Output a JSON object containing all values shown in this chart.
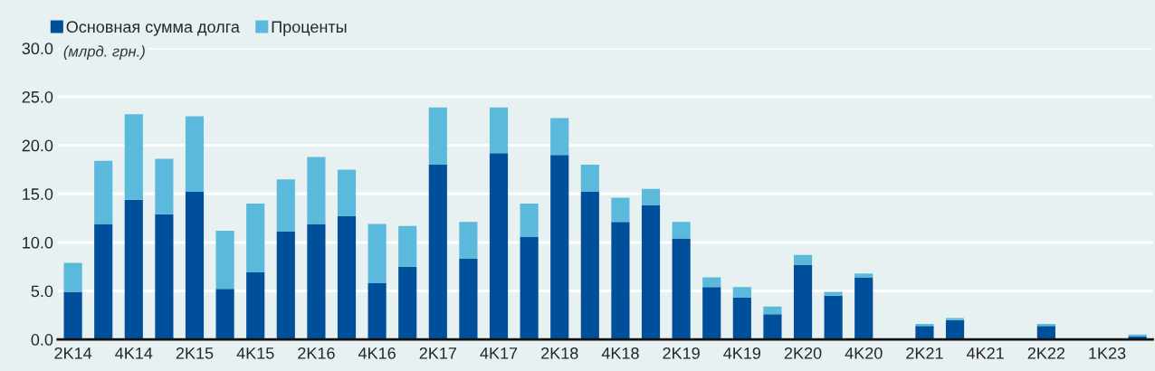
{
  "chart_data": {
    "type": "bar",
    "stacked": true,
    "categories": [
      "2K14",
      null,
      "4K14",
      null,
      "2K15",
      null,
      "4K15",
      null,
      "2K16",
      null,
      "4K16",
      null,
      "2K17",
      null,
      "4K17",
      null,
      "2K18",
      null,
      "4K18",
      null,
      "2K19",
      null,
      "4K19",
      null,
      "2K20",
      null,
      "4K20",
      null,
      "2K21",
      null,
      "4K21",
      null,
      "2K22",
      null,
      "1K23",
      null
    ],
    "series": [
      {
        "name": "Основная сумма долга",
        "color": "#004f9a",
        "values": [
          4.9,
          11.9,
          14.4,
          12.9,
          15.2,
          5.2,
          6.9,
          11.1,
          11.9,
          12.7,
          5.8,
          7.5,
          18.0,
          8.3,
          19.2,
          10.6,
          19.0,
          15.2,
          12.1,
          13.8,
          10.4,
          5.4,
          4.3,
          2.6,
          7.7,
          4.5,
          6.4,
          0,
          1.4,
          2.0,
          0,
          0,
          1.4,
          0,
          0,
          0.3
        ]
      },
      {
        "name": "Проценты",
        "color": "#5bb9dc",
        "values": [
          3.0,
          6.5,
          8.8,
          5.7,
          7.8,
          6.0,
          7.1,
          5.4,
          6.9,
          4.8,
          6.1,
          4.2,
          5.9,
          3.8,
          4.7,
          3.4,
          3.8,
          2.8,
          2.5,
          1.7,
          1.7,
          1.0,
          1.1,
          0.8,
          1.0,
          0.4,
          0.4,
          0,
          0.2,
          0.2,
          0,
          0,
          0.2,
          0,
          0,
          0.2
        ]
      }
    ],
    "ylim": [
      0,
      30
    ],
    "yticks": [
      {
        "value": 0,
        "label": "0.0"
      },
      {
        "value": 5,
        "label": "5.0"
      },
      {
        "value": 10,
        "label": "10.0"
      },
      {
        "value": 15,
        "label": "15.0"
      },
      {
        "value": 20,
        "label": "20.0"
      },
      {
        "value": 25,
        "label": "25.0"
      },
      {
        "value": 30,
        "label": "30.0"
      }
    ],
    "grid": "y",
    "legend": "top left",
    "annotations": [
      "(млрд. грн.)"
    ]
  }
}
